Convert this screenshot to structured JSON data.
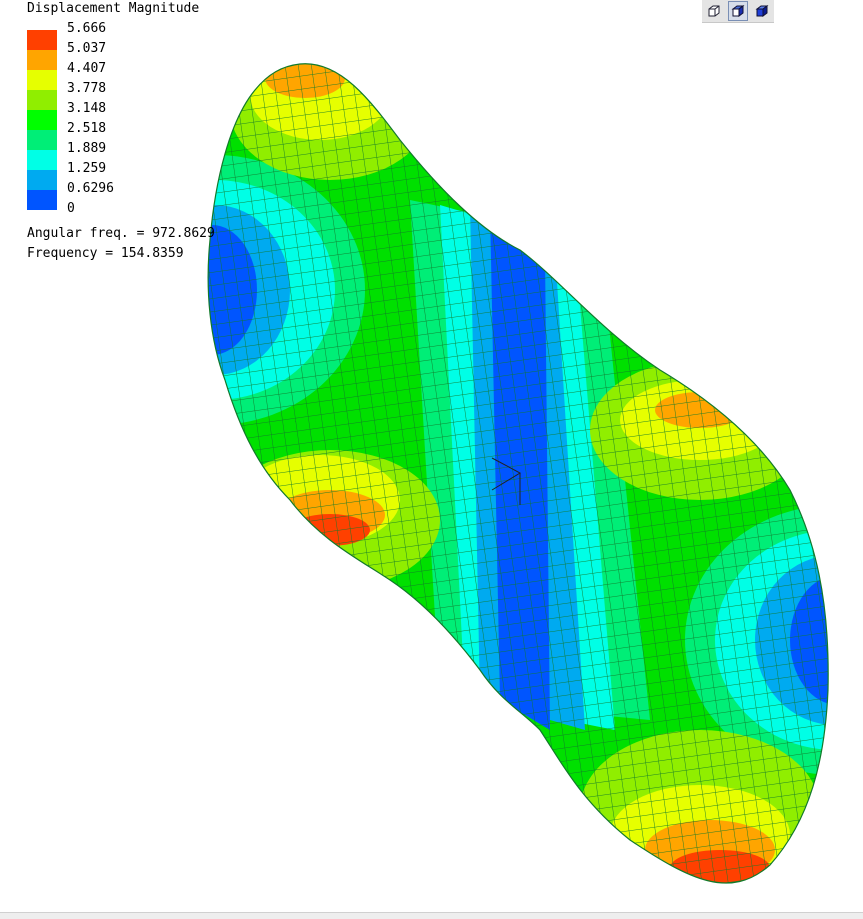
{
  "legend": {
    "title": "Displacement Magnitude",
    "levels": [
      {
        "value": "5.666",
        "color": "#ff4000"
      },
      {
        "value": "5.037",
        "color": "#ffa500"
      },
      {
        "value": "4.407",
        "color": "#e6ff00"
      },
      {
        "value": "3.778",
        "color": "#90ee00"
      },
      {
        "value": "3.148",
        "color": "#00ff00"
      },
      {
        "value": "2.518",
        "color": "#00ee77"
      },
      {
        "value": "1.889",
        "color": "#00ffe6"
      },
      {
        "value": "1.259",
        "color": "#00aaf0"
      },
      {
        "value": "0.6296",
        "color": "#0055ff"
      }
    ],
    "min_value": "0"
  },
  "info": {
    "angular_freq": "Angular freq. = 972.8629",
    "frequency": "Frequency = 154.8359"
  },
  "toolbar": {
    "buttons": [
      {
        "icon": "wireframe-cube-icon",
        "active": false
      },
      {
        "icon": "shaded-cube-icon",
        "active": true
      },
      {
        "icon": "solid-cube-icon",
        "active": false
      }
    ]
  },
  "mesh_color": "#117a2a"
}
